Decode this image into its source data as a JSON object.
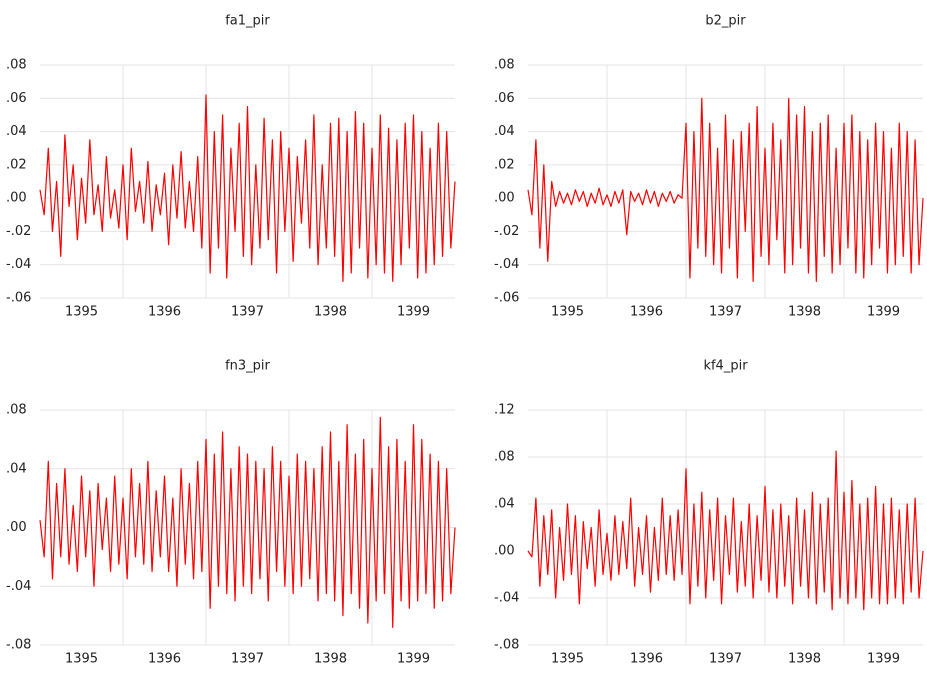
{
  "chart_data": [
    {
      "type": "line",
      "title": "fa1_pir",
      "x": [
        1395,
        1395.05,
        1395.1,
        1395.15,
        1395.2,
        1395.25,
        1395.3,
        1395.35,
        1395.4,
        1395.45,
        1395.5,
        1395.55,
        1395.6,
        1395.65,
        1395.7,
        1395.75,
        1395.8,
        1395.85,
        1395.9,
        1395.95,
        1396,
        1396.05,
        1396.1,
        1396.15,
        1396.2,
        1396.25,
        1396.3,
        1396.35,
        1396.4,
        1396.45,
        1396.5,
        1396.55,
        1396.6,
        1396.65,
        1396.7,
        1396.75,
        1396.8,
        1396.85,
        1396.9,
        1396.95,
        1397,
        1397.05,
        1397.1,
        1397.15,
        1397.2,
        1397.25,
        1397.3,
        1397.35,
        1397.4,
        1397.45,
        1397.5,
        1397.55,
        1397.6,
        1397.65,
        1397.7,
        1397.75,
        1397.8,
        1397.85,
        1397.9,
        1397.95,
        1398,
        1398.05,
        1398.1,
        1398.15,
        1398.2,
        1398.25,
        1398.3,
        1398.35,
        1398.4,
        1398.45,
        1398.5,
        1398.55,
        1398.6,
        1398.65,
        1398.7,
        1398.75,
        1398.8,
        1398.85,
        1398.9,
        1398.95,
        1399,
        1399.05,
        1399.1,
        1399.15,
        1399.2,
        1399.25,
        1399.3,
        1399.35,
        1399.4,
        1399.45,
        1399.5,
        1399.55,
        1399.6,
        1399.65,
        1399.7,
        1399.75,
        1399.8,
        1399.85,
        1399.9,
        1399.95,
        1400
      ],
      "series": [
        {
          "color": "#ff0000",
          "values": [
            0.005,
            -0.01,
            0.03,
            -0.02,
            0.01,
            -0.035,
            0.038,
            -0.005,
            0.02,
            -0.025,
            0.012,
            -0.015,
            0.035,
            -0.01,
            0.008,
            -0.02,
            0.025,
            -0.012,
            0.005,
            -0.018,
            0.02,
            -0.025,
            0.03,
            -0.008,
            0.01,
            -0.015,
            0.022,
            -0.02,
            0.008,
            -0.01,
            0.015,
            -0.028,
            0.02,
            -0.012,
            0.028,
            -0.018,
            0.01,
            -0.02,
            0.025,
            -0.03,
            0.062,
            -0.045,
            0.04,
            -0.03,
            0.05,
            -0.048,
            0.03,
            -0.02,
            0.045,
            -0.035,
            0.055,
            -0.04,
            0.02,
            -0.03,
            0.048,
            -0.025,
            0.035,
            -0.045,
            0.04,
            -0.02,
            0.03,
            -0.038,
            0.025,
            -0.015,
            0.035,
            -0.03,
            0.05,
            -0.04,
            0.02,
            -0.03,
            0.045,
            -0.035,
            0.048,
            -0.05,
            0.04,
            -0.045,
            0.052,
            -0.03,
            0.045,
            -0.048,
            0.03,
            -0.04,
            0.05,
            -0.045,
            0.042,
            -0.05,
            0.035,
            -0.04,
            0.045,
            -0.03,
            0.05,
            -0.048,
            0.04,
            -0.045,
            0.03,
            -0.04,
            0.045,
            -0.035,
            0.04,
            -0.03,
            0.01
          ]
        }
      ],
      "xlim": [
        1395,
        1400
      ],
      "xticks": [
        {
          "value": 1395.5,
          "label": "1395"
        },
        {
          "value": 1396.5,
          "label": "1396"
        },
        {
          "value": 1397.5,
          "label": "1397"
        },
        {
          "value": 1398.5,
          "label": "1398"
        },
        {
          "value": 1399.5,
          "label": "1399"
        }
      ],
      "xgrid": [
        1396,
        1397,
        1398,
        1399
      ],
      "ylim": [
        -0.06,
        0.08
      ],
      "yticks": [
        {
          "value": -0.06,
          "label": "-.06"
        },
        {
          "value": -0.04,
          "label": "-.04"
        },
        {
          "value": -0.02,
          "label": "-.02"
        },
        {
          "value": 0,
          "label": ".00"
        },
        {
          "value": 0.02,
          "label": ".02"
        },
        {
          "value": 0.04,
          "label": ".04"
        },
        {
          "value": 0.06,
          "label": ".06"
        },
        {
          "value": 0.08,
          "label": ".08"
        }
      ]
    },
    {
      "type": "line",
      "title": "b2_pir",
      "x": [
        1395,
        1395.05,
        1395.1,
        1395.15,
        1395.2,
        1395.25,
        1395.3,
        1395.35,
        1395.4,
        1395.45,
        1395.5,
        1395.55,
        1395.6,
        1395.65,
        1395.7,
        1395.75,
        1395.8,
        1395.85,
        1395.9,
        1395.95,
        1396,
        1396.05,
        1396.1,
        1396.15,
        1396.2,
        1396.25,
        1396.3,
        1396.35,
        1396.4,
        1396.45,
        1396.5,
        1396.55,
        1396.6,
        1396.65,
        1396.7,
        1396.75,
        1396.8,
        1396.85,
        1396.9,
        1396.95,
        1397,
        1397.05,
        1397.1,
        1397.15,
        1397.2,
        1397.25,
        1397.3,
        1397.35,
        1397.4,
        1397.45,
        1397.5,
        1397.55,
        1397.6,
        1397.65,
        1397.7,
        1397.75,
        1397.8,
        1397.85,
        1397.9,
        1397.95,
        1398,
        1398.05,
        1398.1,
        1398.15,
        1398.2,
        1398.25,
        1398.3,
        1398.35,
        1398.4,
        1398.45,
        1398.5,
        1398.55,
        1398.6,
        1398.65,
        1398.7,
        1398.75,
        1398.8,
        1398.85,
        1398.9,
        1398.95,
        1399,
        1399.05,
        1399.1,
        1399.15,
        1399.2,
        1399.25,
        1399.3,
        1399.35,
        1399.4,
        1399.45,
        1399.5,
        1399.55,
        1399.6,
        1399.65,
        1399.7,
        1399.75,
        1399.8,
        1399.85,
        1399.9,
        1399.95,
        1400
      ],
      "series": [
        {
          "color": "#ff0000",
          "values": [
            0.005,
            -0.01,
            0.035,
            -0.03,
            0.02,
            -0.038,
            0.01,
            -0.005,
            0.004,
            -0.003,
            0.003,
            -0.004,
            0.005,
            -0.002,
            0.004,
            -0.005,
            0.003,
            -0.003,
            0.006,
            -0.004,
            0.002,
            -0.005,
            0.004,
            -0.003,
            0.005,
            -0.022,
            0.004,
            -0.002,
            0.003,
            -0.004,
            0.005,
            -0.003,
            0.004,
            -0.005,
            0.003,
            -0.002,
            0.004,
            -0.003,
            0.002,
            0,
            0.045,
            -0.048,
            0.04,
            -0.03,
            0.06,
            -0.035,
            0.045,
            -0.04,
            0.03,
            -0.045,
            0.05,
            -0.03,
            0.035,
            -0.048,
            0.04,
            -0.02,
            0.045,
            -0.05,
            0.055,
            -0.035,
            0.03,
            -0.04,
            0.045,
            -0.025,
            0.035,
            -0.045,
            0.06,
            -0.04,
            0.05,
            -0.03,
            0.055,
            -0.045,
            0.04,
            -0.05,
            0.045,
            -0.035,
            0.05,
            -0.045,
            0.03,
            -0.04,
            0.045,
            -0.03,
            0.05,
            -0.045,
            0.04,
            -0.048,
            0.035,
            -0.04,
            0.045,
            -0.03,
            0.04,
            -0.045,
            0.03,
            -0.04,
            0.045,
            -0.035,
            0.04,
            -0.045,
            0.035,
            -0.04,
            0
          ]
        }
      ],
      "xlim": [
        1395,
        1400
      ],
      "xticks": [
        {
          "value": 1395.5,
          "label": "1395"
        },
        {
          "value": 1396.5,
          "label": "1396"
        },
        {
          "value": 1397.5,
          "label": "1397"
        },
        {
          "value": 1398.5,
          "label": "1398"
        },
        {
          "value": 1399.5,
          "label": "1399"
        }
      ],
      "xgrid": [
        1396,
        1397,
        1398,
        1399
      ],
      "ylim": [
        -0.06,
        0.08
      ],
      "yticks": [
        {
          "value": -0.06,
          "label": "-.06"
        },
        {
          "value": -0.04,
          "label": "-.04"
        },
        {
          "value": -0.02,
          "label": "-.02"
        },
        {
          "value": 0,
          "label": ".00"
        },
        {
          "value": 0.02,
          "label": ".02"
        },
        {
          "value": 0.04,
          "label": ".04"
        },
        {
          "value": 0.06,
          "label": ".06"
        },
        {
          "value": 0.08,
          "label": ".08"
        }
      ]
    },
    {
      "type": "line",
      "title": "fn3_pir",
      "x": [
        1395,
        1395.05,
        1395.1,
        1395.15,
        1395.2,
        1395.25,
        1395.3,
        1395.35,
        1395.4,
        1395.45,
        1395.5,
        1395.55,
        1395.6,
        1395.65,
        1395.7,
        1395.75,
        1395.8,
        1395.85,
        1395.9,
        1395.95,
        1396,
        1396.05,
        1396.1,
        1396.15,
        1396.2,
        1396.25,
        1396.3,
        1396.35,
        1396.4,
        1396.45,
        1396.5,
        1396.55,
        1396.6,
        1396.65,
        1396.7,
        1396.75,
        1396.8,
        1396.85,
        1396.9,
        1396.95,
        1397,
        1397.05,
        1397.1,
        1397.15,
        1397.2,
        1397.25,
        1397.3,
        1397.35,
        1397.4,
        1397.45,
        1397.5,
        1397.55,
        1397.6,
        1397.65,
        1397.7,
        1397.75,
        1397.8,
        1397.85,
        1397.9,
        1397.95,
        1398,
        1398.05,
        1398.1,
        1398.15,
        1398.2,
        1398.25,
        1398.3,
        1398.35,
        1398.4,
        1398.45,
        1398.5,
        1398.55,
        1398.6,
        1398.65,
        1398.7,
        1398.75,
        1398.8,
        1398.85,
        1398.9,
        1398.95,
        1399,
        1399.05,
        1399.1,
        1399.15,
        1399.2,
        1399.25,
        1399.3,
        1399.35,
        1399.4,
        1399.45,
        1399.5,
        1399.55,
        1399.6,
        1399.65,
        1399.7,
        1399.75,
        1399.8,
        1399.85,
        1399.9,
        1399.95,
        1400
      ],
      "series": [
        {
          "color": "#ff0000",
          "values": [
            0.005,
            -0.02,
            0.045,
            -0.035,
            0.03,
            -0.02,
            0.04,
            -0.025,
            0.015,
            -0.03,
            0.035,
            -0.02,
            0.025,
            -0.04,
            0.03,
            -0.015,
            0.02,
            -0.03,
            0.035,
            -0.025,
            0.02,
            -0.035,
            0.04,
            -0.02,
            0.03,
            -0.025,
            0.045,
            -0.03,
            0.025,
            -0.02,
            0.035,
            -0.03,
            0.02,
            -0.04,
            0.04,
            -0.025,
            0.03,
            -0.035,
            0.045,
            -0.03,
            0.06,
            -0.055,
            0.05,
            -0.04,
            0.065,
            -0.045,
            0.04,
            -0.05,
            0.055,
            -0.04,
            0.05,
            -0.045,
            0.045,
            -0.035,
            0.04,
            -0.05,
            0.055,
            -0.03,
            0.045,
            -0.04,
            0.035,
            -0.045,
            0.05,
            -0.04,
            0.045,
            -0.035,
            0.04,
            -0.05,
            0.055,
            -0.045,
            0.065,
            -0.05,
            0.045,
            -0.06,
            0.07,
            -0.045,
            0.05,
            -0.055,
            0.06,
            -0.065,
            0.04,
            -0.05,
            0.075,
            -0.045,
            0.055,
            -0.068,
            0.06,
            -0.05,
            0.045,
            -0.055,
            0.07,
            -0.05,
            0.06,
            -0.045,
            0.05,
            -0.055,
            0.045,
            -0.05,
            0.04,
            -0.045,
            0
          ]
        }
      ],
      "xlim": [
        1395,
        1400
      ],
      "xticks": [
        {
          "value": 1395.5,
          "label": "1395"
        },
        {
          "value": 1396.5,
          "label": "1396"
        },
        {
          "value": 1397.5,
          "label": "1397"
        },
        {
          "value": 1398.5,
          "label": "1398"
        },
        {
          "value": 1399.5,
          "label": "1399"
        }
      ],
      "xgrid": [
        1396,
        1397,
        1398,
        1399
      ],
      "ylim": [
        -0.08,
        0.08
      ],
      "yticks": [
        {
          "value": -0.08,
          "label": "-.08"
        },
        {
          "value": -0.04,
          "label": "-.04"
        },
        {
          "value": 0,
          "label": ".00"
        },
        {
          "value": 0.04,
          "label": ".04"
        },
        {
          "value": 0.08,
          "label": ".08"
        }
      ]
    },
    {
      "type": "line",
      "title": "kf4_pir",
      "x": [
        1395,
        1395.05,
        1395.1,
        1395.15,
        1395.2,
        1395.25,
        1395.3,
        1395.35,
        1395.4,
        1395.45,
        1395.5,
        1395.55,
        1395.6,
        1395.65,
        1395.7,
        1395.75,
        1395.8,
        1395.85,
        1395.9,
        1395.95,
        1396,
        1396.05,
        1396.1,
        1396.15,
        1396.2,
        1396.25,
        1396.3,
        1396.35,
        1396.4,
        1396.45,
        1396.5,
        1396.55,
        1396.6,
        1396.65,
        1396.7,
        1396.75,
        1396.8,
        1396.85,
        1396.9,
        1396.95,
        1397,
        1397.05,
        1397.1,
        1397.15,
        1397.2,
        1397.25,
        1397.3,
        1397.35,
        1397.4,
        1397.45,
        1397.5,
        1397.55,
        1397.6,
        1397.65,
        1397.7,
        1397.75,
        1397.8,
        1397.85,
        1397.9,
        1397.95,
        1398,
        1398.05,
        1398.1,
        1398.15,
        1398.2,
        1398.25,
        1398.3,
        1398.35,
        1398.4,
        1398.45,
        1398.5,
        1398.55,
        1398.6,
        1398.65,
        1398.7,
        1398.75,
        1398.8,
        1398.85,
        1398.9,
        1398.95,
        1399,
        1399.05,
        1399.1,
        1399.15,
        1399.2,
        1399.25,
        1399.3,
        1399.35,
        1399.4,
        1399.45,
        1399.5,
        1399.55,
        1399.6,
        1399.65,
        1399.7,
        1399.75,
        1399.8,
        1399.85,
        1399.9,
        1399.95,
        1400
      ],
      "series": [
        {
          "color": "#ff0000",
          "values": [
            0,
            -0.005,
            0.045,
            -0.03,
            0.03,
            -0.02,
            0.035,
            -0.04,
            0.02,
            -0.025,
            0.04,
            -0.02,
            0.03,
            -0.045,
            0.025,
            -0.015,
            0.02,
            -0.03,
            0.035,
            -0.02,
            0.015,
            -0.025,
            0.03,
            -0.02,
            0.025,
            -0.015,
            0.045,
            -0.03,
            0.02,
            -0.02,
            0.03,
            -0.035,
            0.02,
            -0.025,
            0.045,
            -0.02,
            0.03,
            -0.025,
            0.035,
            -0.02,
            0.07,
            -0.045,
            0.04,
            -0.03,
            0.05,
            -0.04,
            0.035,
            -0.025,
            0.045,
            -0.045,
            0.03,
            -0.02,
            0.045,
            -0.035,
            0.025,
            -0.03,
            0.04,
            -0.04,
            0.03,
            -0.025,
            0.055,
            -0.035,
            0.035,
            -0.04,
            0.04,
            -0.03,
            0.03,
            -0.045,
            0.045,
            -0.03,
            0.035,
            -0.04,
            0.05,
            -0.045,
            0.04,
            -0.035,
            0.045,
            -0.05,
            0.085,
            -0.04,
            0.05,
            -0.045,
            0.06,
            -0.04,
            0.04,
            -0.05,
            0.045,
            -0.04,
            0.055,
            -0.045,
            0.04,
            -0.045,
            0.045,
            -0.04,
            0.035,
            -0.045,
            0.04,
            -0.035,
            0.045,
            -0.04,
            0
          ]
        }
      ],
      "xlim": [
        1395,
        1400
      ],
      "xticks": [
        {
          "value": 1395.5,
          "label": "1395"
        },
        {
          "value": 1396.5,
          "label": "1396"
        },
        {
          "value": 1397.5,
          "label": "1397"
        },
        {
          "value": 1398.5,
          "label": "1398"
        },
        {
          "value": 1399.5,
          "label": "1399"
        }
      ],
      "xgrid": [
        1396,
        1397,
        1398,
        1399
      ],
      "ylim": [
        -0.08,
        0.12
      ],
      "yticks": [
        {
          "value": -0.08,
          "label": "-.08"
        },
        {
          "value": -0.04,
          "label": "-.04"
        },
        {
          "value": 0,
          "label": ".00"
        },
        {
          "value": 0.04,
          "label": ".04"
        },
        {
          "value": 0.08,
          "label": ".08"
        },
        {
          "value": 0.12,
          "label": ".12"
        }
      ]
    }
  ]
}
